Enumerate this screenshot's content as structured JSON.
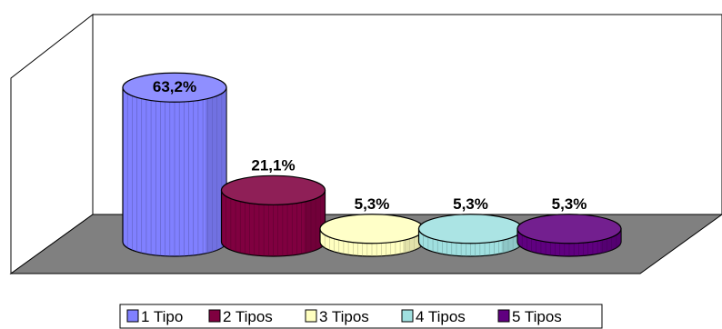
{
  "chart_data": {
    "type": "bar",
    "style": "3d-cylinder",
    "categories": [
      "1 Tipo",
      "2 Tipos",
      "3 Tipos",
      "4 Tipos",
      "5 Tipos"
    ],
    "values": [
      63.2,
      21.1,
      5.3,
      5.3,
      5.3
    ],
    "data_labels": [
      "63,2%",
      "21,1%",
      "5,3%",
      "5,3%",
      "5,3%"
    ],
    "unit": "%",
    "ylim": [
      0,
      70
    ],
    "grid": false,
    "legend_position": "bottom",
    "colors": [
      "#8080ff",
      "#800040",
      "#ffffc0",
      "#a0e0e0",
      "#600080"
    ],
    "floor_color": "#808080"
  }
}
